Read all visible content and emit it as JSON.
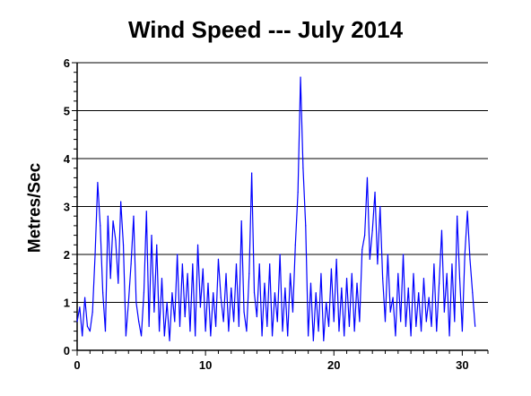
{
  "chart_data": {
    "type": "line",
    "title": "Wind Speed --- July 2014",
    "xlabel": "",
    "ylabel": "Metres/Sec",
    "xlim": [
      0,
      32
    ],
    "ylim": [
      0,
      6
    ],
    "x_ticks": [
      0,
      10,
      20,
      30
    ],
    "x_tick_labels": [
      "0",
      "10",
      "20",
      "30"
    ],
    "y_ticks": [
      0,
      1,
      2,
      3,
      4,
      5,
      6
    ],
    "y_tick_labels": [
      "0",
      "1",
      "2",
      "3",
      "4",
      "5",
      "6"
    ],
    "grid": "horizontal",
    "legend": "none",
    "line_color": "#0000ff",
    "series": [
      {
        "x": [
          0.0,
          0.2,
          0.4,
          0.6,
          0.8,
          1.0,
          1.2,
          1.4,
          1.6,
          1.8,
          2.0,
          2.2,
          2.4,
          2.6,
          2.8,
          3.0,
          3.2,
          3.4,
          3.6,
          3.8,
          4.0,
          4.2,
          4.4,
          4.6,
          4.8,
          5.0,
          5.2,
          5.4,
          5.6,
          5.8,
          6.0,
          6.2,
          6.4,
          6.6,
          6.8,
          7.0,
          7.2,
          7.4,
          7.6,
          7.8,
          8.0,
          8.2,
          8.4,
          8.6,
          8.8,
          9.0,
          9.2,
          9.4,
          9.6,
          9.8,
          10.0,
          10.2,
          10.4,
          10.6,
          10.8,
          11.0,
          11.2,
          11.4,
          11.6,
          11.8,
          12.0,
          12.2,
          12.4,
          12.6,
          12.8,
          13.0,
          13.2,
          13.4,
          13.6,
          13.8,
          14.0,
          14.2,
          14.4,
          14.6,
          14.8,
          15.0,
          15.2,
          15.4,
          15.6,
          15.8,
          16.0,
          16.2,
          16.4,
          16.6,
          16.8,
          17.0,
          17.2,
          17.4,
          17.6,
          17.8,
          18.0,
          18.2,
          18.4,
          18.6,
          18.8,
          19.0,
          19.2,
          19.4,
          19.6,
          19.8,
          20.0,
          20.2,
          20.4,
          20.6,
          20.8,
          21.0,
          21.2,
          21.4,
          21.6,
          21.8,
          22.0,
          22.2,
          22.4,
          22.6,
          22.8,
          23.0,
          23.2,
          23.4,
          23.6,
          23.8,
          24.0,
          24.2,
          24.4,
          24.6,
          24.8,
          25.0,
          25.2,
          25.4,
          25.6,
          25.8,
          26.0,
          26.2,
          26.4,
          26.6,
          26.8,
          27.0,
          27.2,
          27.4,
          27.6,
          27.8,
          28.0,
          28.2,
          28.4,
          28.6,
          28.8,
          29.0,
          29.2,
          29.4,
          29.6,
          29.8,
          30.0,
          30.2,
          30.4,
          30.6,
          30.8,
          31.0
        ],
        "y": [
          0.6,
          0.9,
          0.3,
          1.1,
          0.5,
          0.4,
          0.8,
          2.0,
          3.5,
          2.6,
          1.2,
          0.4,
          2.8,
          1.5,
          2.7,
          2.3,
          1.4,
          3.1,
          2.2,
          0.3,
          1.0,
          1.8,
          2.8,
          1.0,
          0.6,
          0.3,
          1.2,
          2.9,
          0.5,
          2.4,
          0.8,
          2.2,
          0.4,
          1.5,
          0.3,
          1.0,
          0.2,
          1.2,
          0.6,
          2.0,
          0.5,
          1.8,
          0.7,
          1.6,
          0.4,
          1.8,
          0.3,
          2.2,
          0.9,
          1.7,
          0.4,
          1.4,
          0.3,
          1.2,
          0.5,
          1.9,
          1.1,
          0.6,
          1.6,
          0.4,
          1.3,
          0.6,
          1.8,
          0.5,
          2.7,
          0.8,
          0.4,
          1.6,
          3.7,
          1.2,
          0.7,
          1.8,
          0.3,
          1.4,
          0.5,
          1.8,
          0.3,
          1.2,
          0.6,
          2.0,
          0.4,
          1.3,
          0.3,
          1.6,
          0.8,
          2.2,
          3.3,
          5.7,
          3.8,
          2.6,
          0.3,
          1.4,
          0.2,
          1.2,
          0.4,
          1.6,
          0.2,
          1.0,
          0.5,
          1.7,
          0.6,
          1.9,
          0.4,
          1.3,
          0.3,
          1.5,
          0.5,
          1.6,
          0.4,
          1.4,
          0.6,
          2.1,
          2.4,
          3.6,
          1.9,
          2.5,
          3.3,
          1.8,
          3.0,
          1.5,
          0.6,
          2.0,
          0.8,
          1.1,
          0.3,
          1.6,
          0.6,
          2.0,
          0.5,
          1.3,
          0.3,
          1.6,
          0.5,
          1.2,
          0.4,
          1.5,
          0.6,
          1.1,
          0.5,
          1.8,
          0.4,
          1.4,
          2.5,
          0.8,
          1.6,
          0.3,
          1.8,
          0.6,
          2.8,
          1.5,
          0.4,
          2.0,
          2.9,
          1.9,
          1.2,
          0.5
        ]
      }
    ]
  }
}
